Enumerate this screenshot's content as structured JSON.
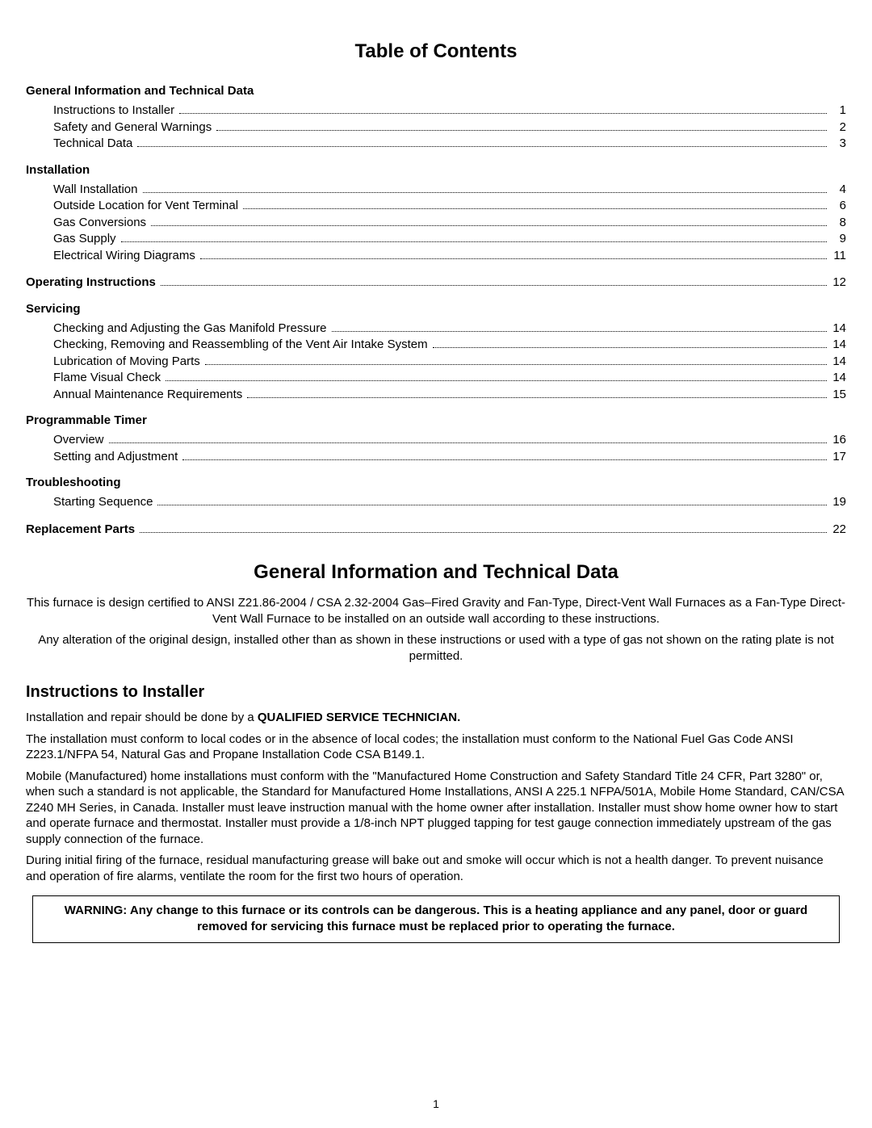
{
  "title": "Table of Contents",
  "toc": {
    "groups": [
      {
        "heading": "General Information and Technical Data",
        "items": [
          {
            "label": "Instructions to Installer",
            "page": "1"
          },
          {
            "label": "Safety and General Warnings",
            "page": "2"
          },
          {
            "label": "Technical Data",
            "page": "3"
          }
        ]
      },
      {
        "heading": "Installation",
        "items": [
          {
            "label": "Wall Installation",
            "page": "4"
          },
          {
            "label": "Outside Location for Vent Terminal",
            "page": "6"
          },
          {
            "label": "Gas Conversions",
            "page": "8"
          },
          {
            "label": "Gas Supply",
            "page": "9"
          },
          {
            "label": "Electrical Wiring Diagrams",
            "page": "11"
          }
        ]
      }
    ],
    "operating": {
      "label": "Operating Instructions",
      "page": "12"
    },
    "groups2": [
      {
        "heading": "Servicing",
        "items": [
          {
            "label": "Checking and Adjusting the Gas Manifold Pressure",
            "page": "14"
          },
          {
            "label": "Checking, Removing and Reassembling of the Vent Air Intake System",
            "page": "14"
          },
          {
            "label": "Lubrication of Moving Parts",
            "page": "14"
          },
          {
            "label": "Flame Visual Check",
            "page": "14"
          },
          {
            "label": "Annual Maintenance Requirements",
            "page": "15"
          }
        ]
      },
      {
        "heading": "Programmable Timer",
        "items": [
          {
            "label": "Overview",
            "page": "16"
          },
          {
            "label": "Setting and Adjustment",
            "page": "17"
          }
        ]
      },
      {
        "heading": "Troubleshooting",
        "items": [
          {
            "label": "Starting Sequence",
            "page": "19"
          }
        ]
      }
    ],
    "replacement": {
      "label": "Replacement Parts",
      "page": "22"
    }
  },
  "section2": {
    "title": "General Information and Technical Data",
    "intro1": "This furnace is design certified to ANSI Z21.86-2004 / CSA 2.32-2004 Gas–Fired Gravity and Fan-Type, Direct-Vent Wall Furnaces as a Fan-Type Direct-Vent Wall Furnace to be installed on an outside wall according to these instructions.",
    "intro2": "Any alteration of the original design, installed other than as shown in these instructions or used with a type of gas not shown on the rating plate is not permitted.",
    "installer_heading": "Instructions to Installer",
    "p1_a": "Installation and repair should be done by a ",
    "p1_b": "QUALIFIED SERVICE TECHNICIAN.",
    "p2": "The installation must conform to local codes or in the absence of local codes; the installation must conform to the National Fuel Gas Code ANSI Z223.1/NFPA 54, Natural Gas and Propane Installation Code CSA B149.1.",
    "p3": "Mobile (Manufactured) home installations must conform with the \"Manufactured Home Construction and Safety Standard Title 24 CFR, Part 3280\" or, when such a standard is not applicable, the Standard for Manufactured Home Installations, ANSI A 225.1 NFPA/501A, Mobile Home Standard, CAN/CSA Z240 MH Series, in Canada.  Installer must leave instruction manual with the home owner after installation.  Installer must show home owner how to start and operate furnace and thermostat.  Installer must provide a 1/8-inch NPT plugged tapping for test gauge connection immediately upstream of the gas supply connection of the furnace.",
    "p4": "During initial firing of the furnace, residual manufacturing grease will bake out and smoke will occur which is not a health danger.  To prevent nuisance and operation of fire alarms, ventilate the room for the first two hours of operation.",
    "warning": "WARNING:  Any change to this furnace or its controls can be dangerous.  This is a heating appliance and any panel, door or guard removed for servicing this furnace must be replaced prior to operating the furnace."
  },
  "page_number": "1"
}
